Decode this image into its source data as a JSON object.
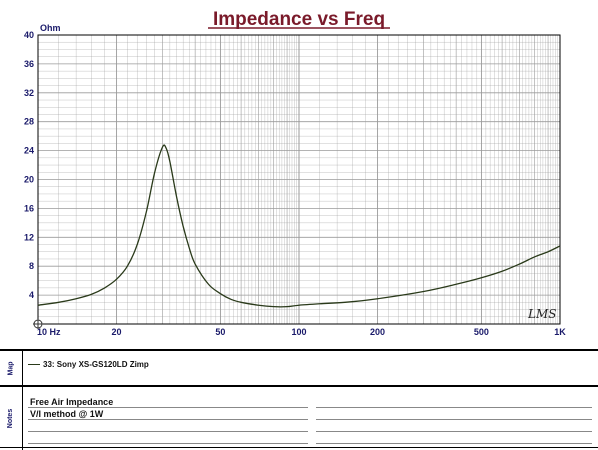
{
  "chart_data": {
    "type": "line",
    "title": "Impedance vs Freq",
    "ylabel": "Ohm",
    "xlabel": "",
    "x_scale": "log",
    "xlim": [
      10,
      1000
    ],
    "ylim": [
      0,
      40
    ],
    "grid": true,
    "x_tick_labels": [
      {
        "value": 10,
        "label": "10 Hz"
      },
      {
        "value": 20,
        "label": "20"
      },
      {
        "value": 50,
        "label": "50"
      },
      {
        "value": 100,
        "label": "100"
      },
      {
        "value": 200,
        "label": "200"
      },
      {
        "value": 500,
        "label": "500"
      },
      {
        "value": 1000,
        "label": "1K"
      }
    ],
    "y_tick_labels": [
      {
        "value": 4,
        "label": "4"
      },
      {
        "value": 8,
        "label": "8"
      },
      {
        "value": 12,
        "label": "12"
      },
      {
        "value": 16,
        "label": "16"
      },
      {
        "value": 20,
        "label": "20"
      },
      {
        "value": 24,
        "label": "24"
      },
      {
        "value": 28,
        "label": "28"
      },
      {
        "value": 32,
        "label": "32"
      },
      {
        "value": 36,
        "label": "36"
      },
      {
        "value": 40,
        "label": "40"
      }
    ],
    "series": [
      {
        "name": "33: Sony XS-GS120LD Zimp",
        "color": "#2a3a1a",
        "points": [
          [
            10,
            2.6
          ],
          [
            12,
            3.0
          ],
          [
            14,
            3.5
          ],
          [
            16,
            4.1
          ],
          [
            18,
            5.0
          ],
          [
            20,
            6.2
          ],
          [
            22,
            8.0
          ],
          [
            24,
            11.0
          ],
          [
            26,
            15.5
          ],
          [
            28,
            21.0
          ],
          [
            30,
            24.5
          ],
          [
            31,
            24.3
          ],
          [
            32,
            22.5
          ],
          [
            34,
            17.5
          ],
          [
            36,
            13.5
          ],
          [
            38,
            10.5
          ],
          [
            40,
            8.3
          ],
          [
            45,
            5.5
          ],
          [
            50,
            4.2
          ],
          [
            55,
            3.4
          ],
          [
            60,
            3.0
          ],
          [
            70,
            2.6
          ],
          [
            80,
            2.4
          ],
          [
            90,
            2.4
          ],
          [
            100,
            2.6
          ],
          [
            120,
            2.8
          ],
          [
            150,
            3.0
          ],
          [
            200,
            3.5
          ],
          [
            300,
            4.5
          ],
          [
            400,
            5.5
          ],
          [
            500,
            6.4
          ],
          [
            600,
            7.3
          ],
          [
            700,
            8.3
          ],
          [
            800,
            9.3
          ],
          [
            900,
            10.0
          ],
          [
            1000,
            10.8
          ]
        ]
      }
    ],
    "watermark": "LMS"
  },
  "map_panel": {
    "label": "Map",
    "legend_entry": "33: Sony XS-GS120LD Zimp"
  },
  "notes_panel": {
    "label": "Notes",
    "lines": [
      "Free Air Impedance",
      "V/I method @ 1W"
    ]
  },
  "colors": {
    "title": "#7a1a2a",
    "axis_text": "#1a1a6a",
    "grid": "#9a9a9a",
    "curve": "#2a3a1a"
  }
}
